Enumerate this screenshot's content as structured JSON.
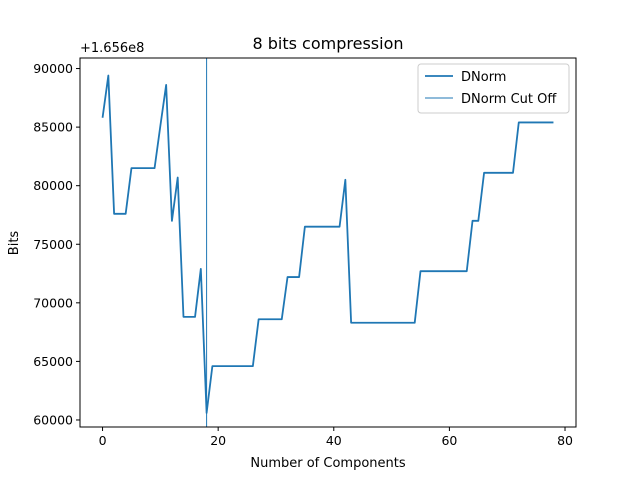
{
  "chart_data": {
    "type": "line",
    "title": "8 bits compression",
    "xlabel": "Number of Components",
    "ylabel": "Bits",
    "y_offset_label": "+1.656e8",
    "xlim": [
      -3.9,
      81.9
    ],
    "ylim": [
      59400,
      90900
    ],
    "x_ticks": [
      0,
      20,
      40,
      60,
      80
    ],
    "x_tick_labels": [
      "0",
      "20",
      "40",
      "60",
      "80"
    ],
    "y_ticks": [
      60000,
      65000,
      70000,
      75000,
      80000,
      85000,
      90000
    ],
    "y_tick_labels": [
      "60000",
      "65000",
      "70000",
      "75000",
      "80000",
      "85000",
      "90000"
    ],
    "grid": false,
    "legend_position": "top-right",
    "color": "#1f77b4",
    "series": [
      {
        "name": "DNorm",
        "x": [
          0,
          1,
          2,
          3,
          4,
          5,
          6,
          7,
          8,
          9,
          10,
          11,
          12,
          13,
          14,
          15,
          16,
          17,
          18,
          19,
          20,
          21,
          22,
          23,
          24,
          25,
          26,
          27,
          28,
          29,
          30,
          31,
          32,
          33,
          34,
          35,
          36,
          37,
          38,
          39,
          40,
          41,
          42,
          43,
          44,
          45,
          46,
          47,
          48,
          49,
          50,
          51,
          52,
          53,
          54,
          55,
          56,
          57,
          58,
          59,
          60,
          61,
          62,
          63,
          64,
          65,
          66,
          67,
          68,
          69,
          70,
          71,
          72,
          73,
          74,
          75,
          76,
          77,
          78
        ],
        "y": [
          85800,
          89400,
          77600,
          77600,
          77600,
          81500,
          81500,
          81500,
          81500,
          81500,
          85100,
          88600,
          77000,
          80700,
          68800,
          68800,
          68800,
          72900,
          60600,
          64600,
          64600,
          64600,
          64600,
          64600,
          64600,
          64600,
          64600,
          68600,
          68600,
          68600,
          68600,
          68600,
          72200,
          72200,
          72200,
          76500,
          76500,
          76500,
          76500,
          76500,
          76500,
          76500,
          80500,
          68300,
          68300,
          68300,
          68300,
          68300,
          68300,
          68300,
          68300,
          68300,
          68300,
          68300,
          68300,
          72700,
          72700,
          72700,
          72700,
          72700,
          72700,
          72700,
          72700,
          72700,
          77000,
          77000,
          81100,
          81100,
          81100,
          81100,
          81100,
          81100,
          85400,
          85400,
          85400,
          85400,
          85400,
          85400,
          85400
        ]
      },
      {
        "name": "DNorm Cut Off",
        "type": "vertical-line",
        "x": 18
      }
    ]
  }
}
